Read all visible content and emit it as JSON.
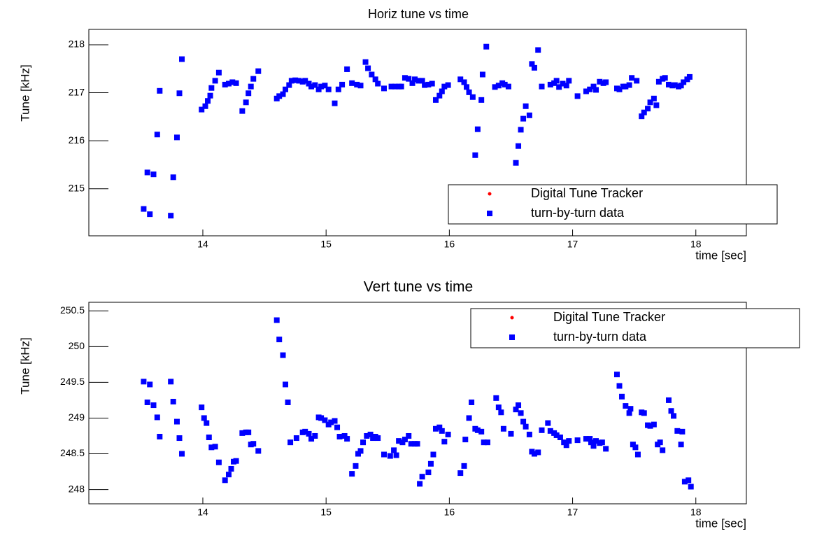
{
  "chart_data": [
    {
      "type": "scatter",
      "title": "Horiz tune vs time",
      "xlabel": "time [sec]",
      "ylabel": "Tune [kHz]",
      "xlim": [
        13.075,
        18.41
      ],
      "xticks": [
        14,
        15,
        16,
        17,
        18
      ],
      "ylim": [
        214.02,
        218.32
      ],
      "yticks": [
        215,
        216,
        217,
        218
      ],
      "legend": "lower right",
      "series": [
        {
          "name": "Digital Tune Tracker",
          "color": "#ff0000",
          "x": [],
          "values": []
        },
        {
          "name": "turn-by-turn data",
          "color": "#0000ff",
          "x": [
            13.52,
            13.55,
            13.57,
            13.6,
            13.63,
            13.65,
            13.74,
            13.76,
            13.79,
            13.81,
            13.83,
            13.99,
            14.02,
            14.04,
            14.06,
            14.07,
            14.1,
            14.13,
            14.18,
            14.21,
            14.24,
            14.27,
            14.32,
            14.35,
            14.37,
            14.39,
            14.41,
            14.45,
            14.6,
            14.62,
            14.65,
            14.67,
            14.7,
            14.72,
            14.75,
            14.78,
            14.81,
            14.83,
            14.86,
            14.88,
            14.91,
            14.94,
            14.96,
            14.99,
            15.02,
            15.07,
            15.1,
            15.13,
            15.17,
            15.21,
            15.25,
            15.28,
            15.32,
            15.34,
            15.37,
            15.4,
            15.42,
            15.47,
            15.53,
            15.56,
            15.59,
            15.61,
            15.64,
            15.67,
            15.7,
            15.72,
            15.75,
            15.78,
            15.8,
            15.83,
            15.86,
            15.89,
            15.92,
            15.94,
            15.96,
            15.99,
            16.09,
            16.12,
            16.14,
            16.16,
            16.19,
            16.21,
            16.23,
            16.26,
            16.27,
            16.3,
            16.37,
            16.4,
            16.43,
            16.45,
            16.48,
            16.54,
            16.56,
            16.58,
            16.6,
            16.62,
            16.65,
            16.67,
            16.69,
            16.72,
            16.75,
            16.82,
            16.85,
            16.87,
            16.89,
            16.92,
            16.95,
            16.97,
            17.04,
            17.11,
            17.14,
            17.17,
            17.19,
            17.22,
            17.25,
            17.27,
            17.36,
            17.38,
            17.41,
            17.43,
            17.46,
            17.48,
            17.52,
            17.56,
            17.58,
            17.61,
            17.63,
            17.66,
            17.68,
            17.7,
            17.73,
            17.75,
            17.78,
            17.81,
            17.83,
            17.86,
            17.88,
            17.9,
            17.93,
            17.95
          ],
          "values": [
            214.58,
            215.34,
            214.47,
            215.3,
            216.13,
            217.04,
            214.44,
            215.24,
            216.07,
            216.99,
            217.7,
            216.65,
            216.72,
            216.83,
            216.94,
            217.1,
            217.25,
            217.42,
            217.17,
            217.19,
            217.22,
            217.2,
            216.62,
            216.8,
            216.99,
            217.13,
            217.29,
            217.45,
            216.88,
            216.93,
            216.97,
            217.07,
            217.16,
            217.25,
            217.26,
            217.25,
            217.23,
            217.25,
            217.19,
            217.13,
            217.16,
            217.07,
            217.13,
            217.15,
            217.07,
            216.78,
            217.07,
            217.17,
            217.49,
            217.2,
            217.17,
            217.15,
            217.64,
            217.51,
            217.38,
            217.28,
            217.19,
            217.09,
            217.13,
            217.13,
            217.13,
            217.13,
            217.31,
            217.29,
            217.2,
            217.28,
            217.25,
            217.25,
            217.16,
            217.17,
            217.19,
            216.85,
            216.94,
            217.03,
            217.13,
            217.16,
            217.28,
            217.22,
            217.12,
            217.01,
            216.91,
            215.7,
            216.24,
            216.85,
            217.38,
            217.96,
            217.12,
            217.15,
            217.2,
            217.17,
            217.13,
            215.54,
            215.89,
            216.23,
            216.46,
            216.72,
            216.53,
            217.6,
            217.52,
            217.89,
            217.13,
            217.17,
            217.2,
            217.25,
            217.12,
            217.19,
            217.15,
            217.25,
            216.93,
            217.03,
            217.07,
            217.13,
            217.06,
            217.23,
            217.2,
            217.22,
            217.09,
            217.07,
            217.13,
            217.13,
            217.16,
            217.31,
            217.25,
            216.51,
            216.59,
            216.67,
            216.8,
            216.88,
            216.74,
            217.23,
            217.29,
            217.31,
            217.17,
            217.15,
            217.16,
            217.13,
            217.15,
            217.22,
            217.28,
            217.33
          ]
        }
      ]
    },
    {
      "type": "scatter",
      "title": "Vert tune vs time",
      "xlabel": "time [sec]",
      "ylabel": "Tune [kHz]",
      "xlim": [
        13.075,
        18.41
      ],
      "xticks": [
        14,
        15,
        16,
        17,
        18
      ],
      "ylim": [
        247.8,
        250.62
      ],
      "yticks": [
        248,
        248.5,
        249,
        249.5,
        250,
        250.5
      ],
      "legend": "upper right",
      "series": [
        {
          "name": "Digital Tune Tracker",
          "color": "#ff0000",
          "x": [],
          "values": []
        },
        {
          "name": "turn-by-turn data",
          "color": "#0000ff",
          "x": [
            13.52,
            13.55,
            13.57,
            13.6,
            13.63,
            13.65,
            13.74,
            13.76,
            13.79,
            13.81,
            13.83,
            13.99,
            14.01,
            14.03,
            14.05,
            14.07,
            14.1,
            14.13,
            14.18,
            14.21,
            14.23,
            14.25,
            14.27,
            14.32,
            14.35,
            14.37,
            14.39,
            14.41,
            14.45,
            14.6,
            14.62,
            14.65,
            14.67,
            14.69,
            14.71,
            14.76,
            14.81,
            14.83,
            14.86,
            14.88,
            14.91,
            14.94,
            14.96,
            14.99,
            15.02,
            15.04,
            15.07,
            15.09,
            15.11,
            15.15,
            15.17,
            15.21,
            15.24,
            15.26,
            15.28,
            15.3,
            15.33,
            15.36,
            15.38,
            15.4,
            15.42,
            15.47,
            15.52,
            15.55,
            15.57,
            15.59,
            15.62,
            15.64,
            15.67,
            15.69,
            15.72,
            15.74,
            15.76,
            15.78,
            15.83,
            15.85,
            15.87,
            15.89,
            15.92,
            15.94,
            15.96,
            15.99,
            16.09,
            16.12,
            16.13,
            16.16,
            16.18,
            16.21,
            16.23,
            16.26,
            16.28,
            16.31,
            16.38,
            16.4,
            16.42,
            16.44,
            16.5,
            16.54,
            16.56,
            16.58,
            16.6,
            16.62,
            16.65,
            16.67,
            16.69,
            16.72,
            16.75,
            16.8,
            16.82,
            16.85,
            16.87,
            16.9,
            16.93,
            16.95,
            16.97,
            17.04,
            17.11,
            17.14,
            17.15,
            17.17,
            17.19,
            17.22,
            17.24,
            17.27,
            17.36,
            17.38,
            17.4,
            17.43,
            17.46,
            17.47,
            17.49,
            17.51,
            17.53,
            17.56,
            17.58,
            17.61,
            17.63,
            17.66,
            17.69,
            17.71,
            17.73,
            17.78,
            17.8,
            17.82,
            17.85,
            17.88,
            17.89,
            17.91,
            17.94,
            17.96
          ],
          "values": [
            249.51,
            249.22,
            249.47,
            249.18,
            249.01,
            248.74,
            249.51,
            249.23,
            248.95,
            248.72,
            248.5,
            249.15,
            249.0,
            248.93,
            248.73,
            248.59,
            248.6,
            248.38,
            248.13,
            248.21,
            248.29,
            248.39,
            248.4,
            248.79,
            248.8,
            248.8,
            248.63,
            248.64,
            248.54,
            250.37,
            250.1,
            249.88,
            249.47,
            249.22,
            248.66,
            248.72,
            248.8,
            248.81,
            248.78,
            248.71,
            248.75,
            249.01,
            249.0,
            248.97,
            248.91,
            248.94,
            248.96,
            248.87,
            248.74,
            248.75,
            248.71,
            248.22,
            248.33,
            248.5,
            248.54,
            248.66,
            248.75,
            248.77,
            248.72,
            248.74,
            248.72,
            248.49,
            248.47,
            248.55,
            248.48,
            248.68,
            248.66,
            248.7,
            248.75,
            248.64,
            248.64,
            248.64,
            248.08,
            248.18,
            248.24,
            248.36,
            248.49,
            248.85,
            248.87,
            248.82,
            248.67,
            248.77,
            248.23,
            248.33,
            248.7,
            249.0,
            249.22,
            248.85,
            248.83,
            248.81,
            248.66,
            248.66,
            249.28,
            249.15,
            249.08,
            248.85,
            248.78,
            249.12,
            249.18,
            249.07,
            248.95,
            248.88,
            248.77,
            248.53,
            248.5,
            248.52,
            248.83,
            248.93,
            248.82,
            248.79,
            248.76,
            248.73,
            248.66,
            248.62,
            248.68,
            248.69,
            248.71,
            248.71,
            248.66,
            248.61,
            248.68,
            248.65,
            248.66,
            248.57,
            249.61,
            249.45,
            249.3,
            249.17,
            249.07,
            249.13,
            248.63,
            248.59,
            248.49,
            249.08,
            249.07,
            248.9,
            248.89,
            248.91,
            248.63,
            248.66,
            248.55,
            249.25,
            249.1,
            249.03,
            248.82,
            248.63,
            248.81,
            248.11,
            248.13,
            248.04
          ]
        }
      ]
    }
  ]
}
